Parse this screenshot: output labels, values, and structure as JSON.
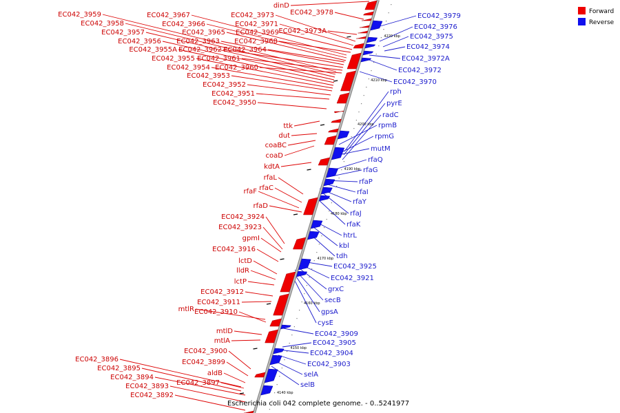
{
  "caption": "Escherichia coli 042 complete genome. - 0..5241977",
  "legend": [
    {
      "label": "Forward",
      "color": "#ee0000"
    },
    {
      "label": "Reverse",
      "color": "#1010ee"
    }
  ],
  "ticks": [
    "4140 kbp",
    "4150 kbp",
    "4160 kbp",
    "4170 kbp",
    "4180 kbp",
    "4190 kbp",
    "4200 kbp",
    "4210 kbp",
    "4220 kbp"
  ],
  "forward_labels": [
    "dinD",
    "EC042_3978",
    "EC042_3959",
    "EC042_3967",
    "EC042_3973",
    "EC042_3958",
    "EC042_3966",
    "EC042_3971",
    "EC042_3957",
    "EC042_3965",
    "EC042_3969",
    "EC042_3973A",
    "EC042_3956",
    "EC042_3963",
    "EC042_3968",
    "EC042_3955A",
    "EC042_3962",
    "EC042_3964",
    "EC042_3955",
    "EC042_3961",
    "EC042_3954",
    "EC042_3960",
    "EC042_3953",
    "EC042_3952",
    "EC042_3951",
    "EC042_3950",
    "ttk",
    "dut",
    "coaBC",
    "coaD",
    "kdtA",
    "rfaL",
    "rfaC",
    "rfaF",
    "rfaD",
    "EC042_3924",
    "EC042_3923",
    "gpmI",
    "EC042_3916",
    "lctD",
    "lldR",
    "lctP",
    "EC042_3912",
    "EC042_3911",
    "mtlR",
    "EC042_3910",
    "mtlD",
    "mtlA",
    "EC042_3900",
    "EC042_3899",
    "aldB",
    "EC042_3896",
    "EC042_3895",
    "EC042_3894",
    "EC042_3897",
    "EC042_3893",
    "EC042_3892"
  ],
  "reverse_labels": [
    "EC042_3979",
    "EC042_3976",
    "EC042_3975",
    "EC042_3974",
    "EC042_3972A",
    "EC042_3972",
    "EC042_3970",
    "rph",
    "pyrE",
    "radC",
    "rpmB",
    "rpmG",
    "mutM",
    "rfaQ",
    "rfaG",
    "rfaP",
    "rfaI",
    "rfaY",
    "rfaJ",
    "rfaK",
    "htrL",
    "kbl",
    "tdh",
    "EC042_3925",
    "EC042_3921",
    "grxC",
    "secB",
    "gpsA",
    "cysE",
    "EC042_3909",
    "EC042_3905",
    "EC042_3904",
    "EC042_3903",
    "selA",
    "selB"
  ]
}
